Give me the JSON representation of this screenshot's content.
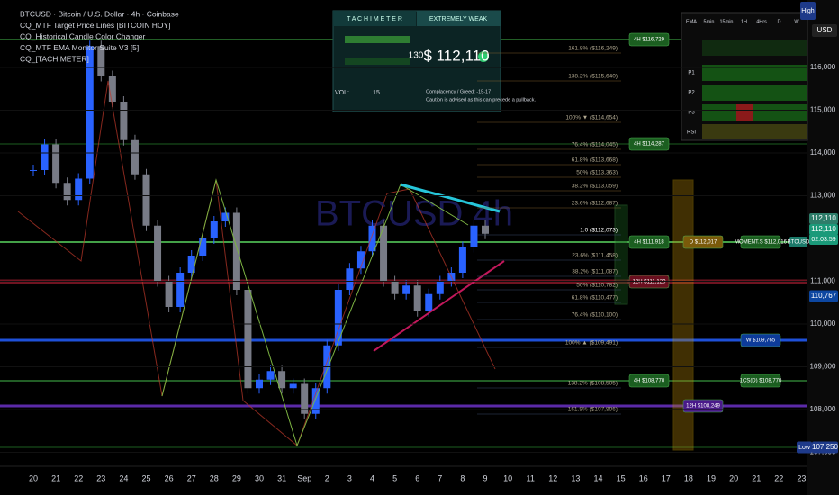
{
  "legend": [
    "BTCUSD · Bitcoin / U.S. Dollar · 4h · Coinbase",
    "CQ_MTF Target Price Lines [BITCOIN HOY]",
    "CQ_Historical Candle Color Changer",
    "CQ_MTF EMA Monitor Suite V3 [5]",
    "CQ_[TACHIMETER]"
  ],
  "watermark": "BTCUSD 4h",
  "tachimeter": {
    "title": "T A C H I M E T E R",
    "status": "EXTREMELY WEAK",
    "price": "$ 112,110",
    "score": "130",
    "vol_label": "VOL:",
    "vol": "15",
    "note1": "Complacency / Greed: -15-17",
    "note2": "Caution is advised as this can precede a pullback."
  },
  "ema_table": {
    "headers": [
      "EMA",
      "5min",
      "15min",
      "1H",
      "4Hrs",
      "D",
      "W"
    ],
    "rows": [
      "P1",
      "P2",
      "P3",
      "RSI"
    ]
  },
  "fib_levels": [
    "161.8% ($116,249)",
    "138.2% ($115,640)",
    "100% ▼ ($114,654)",
    "76.4% ($114,045)",
    "61.8% ($113,668)",
    "50% ($113,363)",
    "38.2% ($113,059)",
    "23.6% ($112,687)",
    "1:0 ($112,073)",
    "23.6% ($111,458)",
    "38.2% ($111,087)",
    "50% ($110,782)",
    "61.8% ($110,477)",
    "76.4% ($110,100)",
    "100% ▲ ($109,491)",
    "138.2% ($108,505)",
    "161.8% ($107,896)"
  ],
  "tags": [
    "4H $116,729",
    "4H $114,287",
    "4H $111,918",
    "4H $108,770",
    "D $112,017",
    "12H $111,120",
    "12H $108,249",
    "W $109,765",
    "MOMENT.S $112,016",
    "1CS(D) $108,770"
  ],
  "price_axis": {
    "ticks": [
      {
        "value": 116000,
        "label": "116,000"
      },
      {
        "value": 115000,
        "label": "115,000"
      },
      {
        "value": 114000,
        "label": "114,000"
      },
      {
        "value": 113000,
        "label": "113,000"
      },
      {
        "value": 111000,
        "label": "111,000"
      },
      {
        "value": 110000,
        "label": "110,000"
      },
      {
        "value": 109000,
        "label": "109,000"
      },
      {
        "value": 108000,
        "label": "108,000"
      },
      {
        "value": 107000,
        "label": "107,000"
      }
    ],
    "high": "High",
    "currency": "USD",
    "last": "112,110",
    "countdown": "02:03:59",
    "symbol": "BTCUSD",
    "marker": "110,767",
    "low": "Low",
    "low_price": "107,250"
  },
  "time_axis": [
    "20",
    "21",
    "22",
    "23",
    "24",
    "25",
    "26",
    "27",
    "28",
    "29",
    "30",
    "31",
    "Sep",
    "2",
    "3",
    "4",
    "5",
    "6",
    "7",
    "8",
    "9",
    "10",
    "11",
    "12",
    "13",
    "14",
    "15",
    "16",
    "17",
    "18",
    "19",
    "20",
    "21",
    "22",
    "23"
  ],
  "chart": {
    "closes": [
      113600,
      114200,
      113300,
      112900,
      113400,
      116500,
      115800,
      115200,
      114300,
      113500,
      112300,
      111000,
      110400,
      111200,
      111600,
      112000,
      112400,
      112600,
      110800,
      108500,
      108700,
      108900,
      108500,
      108600,
      107900,
      108500,
      109500,
      110800,
      111300,
      111700,
      112300,
      111000,
      110700,
      110900,
      110300,
      110700,
      111000,
      111200,
      111800,
      112300,
      112110
    ]
  }
}
